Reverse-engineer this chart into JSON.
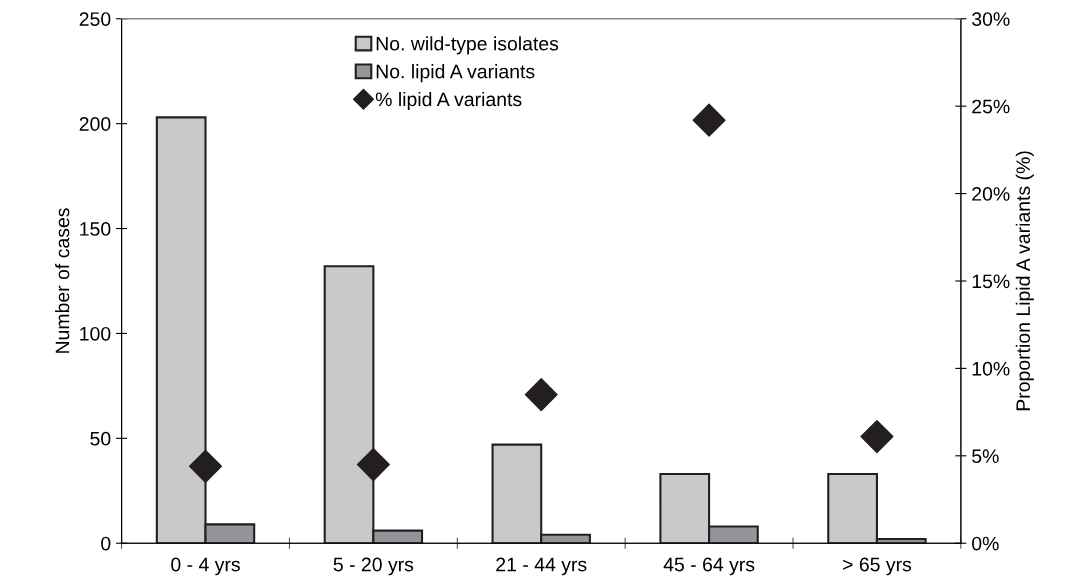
{
  "chart_data": {
    "type": "bar",
    "categories": [
      "0 - 4 yrs",
      "5 - 20 yrs",
      "21 - 44 yrs",
      "45 - 64 yrs",
      "> 65 yrs"
    ],
    "series": [
      {
        "name": "No. wild-type isolates",
        "color": "#c8c9cb",
        "values": [
          203,
          132,
          47,
          33,
          33
        ]
      },
      {
        "name": "No. lipid A variants",
        "color": "#939598",
        "values": [
          9,
          6,
          4,
          8,
          2
        ]
      },
      {
        "name": "% lipid A variants",
        "color": "#231f20",
        "type": "scatter",
        "axis": "y2",
        "marker": "diamond",
        "values": [
          4.4,
          4.5,
          8.5,
          24.2,
          6.1
        ]
      }
    ],
    "ylabel": "Number of cases",
    "y2label": "Proportion Lipid A variants (%)",
    "ylim": [
      0,
      250
    ],
    "yticks": [
      0,
      50,
      100,
      150,
      200,
      250
    ],
    "y2lim": [
      0,
      30
    ],
    "y2ticks": [
      {
        "value": 0,
        "label": "0%"
      },
      {
        "value": 5,
        "label": "5%"
      },
      {
        "value": 10,
        "label": "10%"
      },
      {
        "value": 15,
        "label": "15%"
      },
      {
        "value": 20,
        "label": "20%"
      },
      {
        "value": 25,
        "label": "25%"
      },
      {
        "value": 30,
        "label": "30%"
      }
    ],
    "grid": false,
    "legend": "top"
  }
}
